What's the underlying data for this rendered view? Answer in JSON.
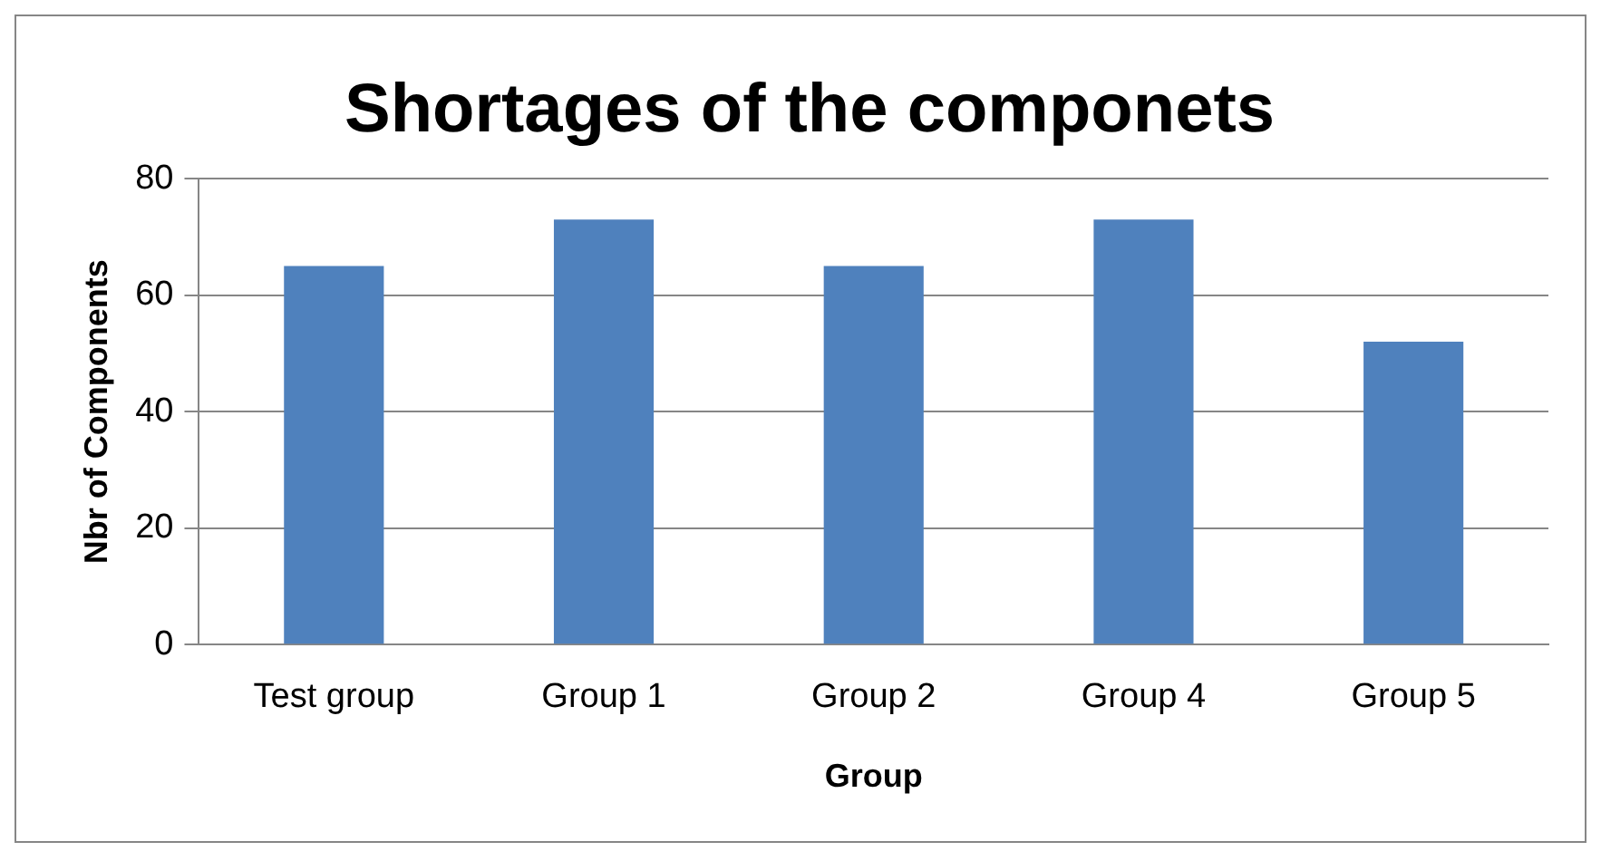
{
  "chart_data": {
    "type": "bar",
    "title": "Shortages of the componets",
    "xlabel": "Group",
    "ylabel": "Nbr of Components",
    "categories": [
      "Test group",
      "Group 1",
      "Group 2",
      "Group 4",
      "Group 5"
    ],
    "values": [
      65,
      73,
      65,
      73,
      52
    ],
    "color": "#4f81bd",
    "ylim": [
      0,
      80
    ],
    "yticks": [
      0,
      20,
      40,
      60,
      80
    ],
    "grid": "y",
    "legend": false
  }
}
